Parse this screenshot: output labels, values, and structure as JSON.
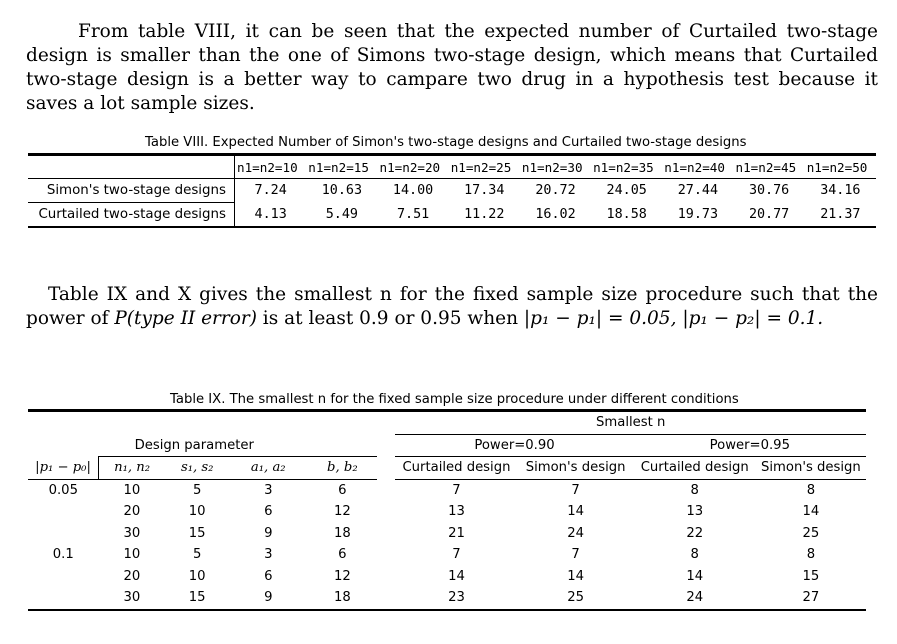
{
  "paragraph1": "From table VIII, it can be seen that the expected number of Curtailed two-stage design is smaller than the one of Simons two-stage design, which means that Curtailed two-stage design is a better way to campare two drug in a hypothesis test because it saves a lot sample sizes.",
  "table8": {
    "caption": "Table VIII. Expected Number of Simon's two-stage designs and Curtailed two-stage designs",
    "columns": [
      "n1=n2=10",
      "n1=n2=15",
      "n1=n2=20",
      "n1=n2=25",
      "n1=n2=30",
      "n1=n2=35",
      "n1=n2=40",
      "n1=n2=45",
      "n1=n2=50"
    ],
    "rows": [
      {
        "label": "Simon's two-stage designs",
        "values": [
          "7.24",
          "10.63",
          "14.00",
          "17.34",
          "20.72",
          "24.05",
          "27.44",
          "30.76",
          "34.16"
        ]
      },
      {
        "label": "Curtailed two-stage designs",
        "values": [
          "4.13",
          "5.49",
          "7.51",
          "11.22",
          "16.02",
          "18.58",
          "19.73",
          "20.77",
          "21.37"
        ]
      }
    ]
  },
  "paragraph2": {
    "part1": "Table IX and X gives the smallest n for the fixed sample size procedure such that the power of ",
    "math1": "P(type II error)",
    "part2": " is at least 0.9 or 0.95 when ",
    "math2": "|p₁ − p₁| = 0.05, |p₁ − p₂| = 0.1."
  },
  "table9": {
    "caption": "Table IX. The smallest n for the fixed sample size procedure under different conditions",
    "smallest_n": "Smallest n",
    "design_parameter": "Design parameter",
    "power1": "Power=0.90",
    "power2": "Power=0.95",
    "headers": [
      "|p₁ − p₀|",
      "n₁, n₂",
      "s₁, s₂",
      "a₁, a₂",
      "b, b₂",
      "Curtailed design",
      "Simon's design",
      "Curtailed design",
      "Simon's design"
    ],
    "rows": [
      [
        "0.05",
        "10",
        "5",
        "3",
        "6",
        "7",
        "7",
        "8",
        "8"
      ],
      [
        "",
        "20",
        "10",
        "6",
        "12",
        "13",
        "14",
        "13",
        "14"
      ],
      [
        "",
        "30",
        "15",
        "9",
        "18",
        "21",
        "24",
        "22",
        "25"
      ],
      [
        "0.1",
        "10",
        "5",
        "3",
        "6",
        "7",
        "7",
        "8",
        "8"
      ],
      [
        "",
        "20",
        "10",
        "6",
        "12",
        "14",
        "14",
        "14",
        "15"
      ],
      [
        "",
        "30",
        "15",
        "9",
        "18",
        "23",
        "25",
        "24",
        "27"
      ]
    ]
  }
}
